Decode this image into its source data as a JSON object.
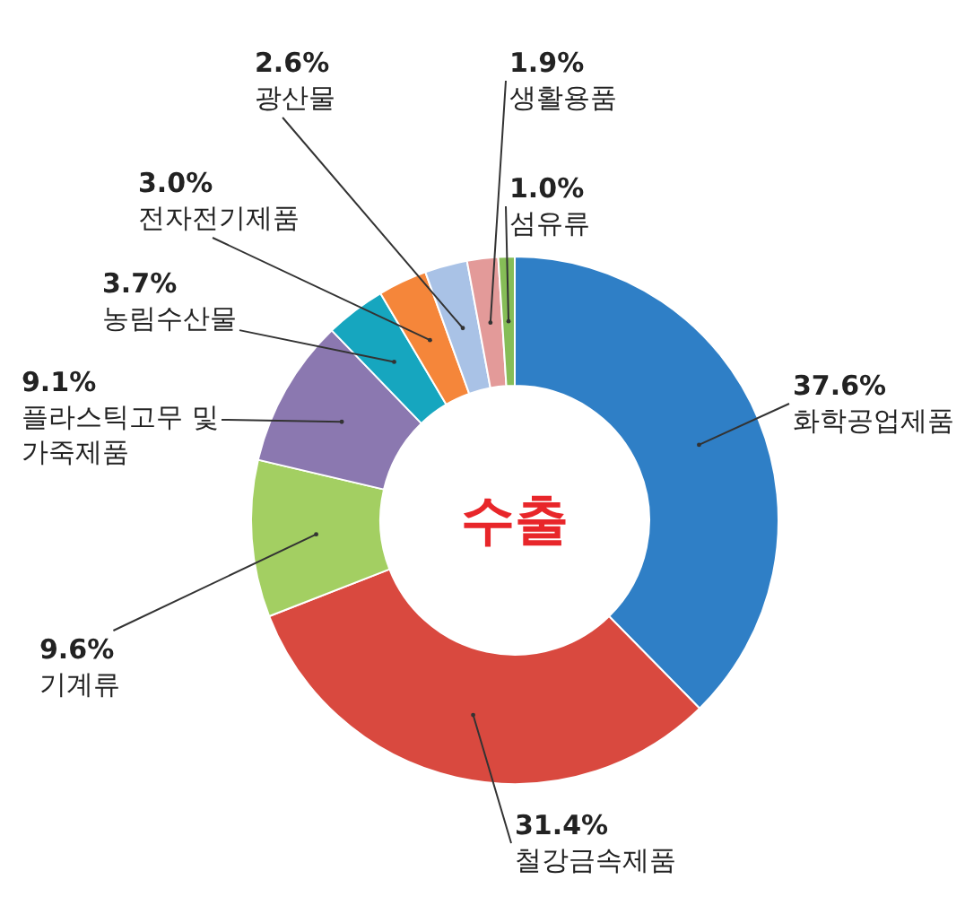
{
  "chart_data": {
    "type": "donut",
    "title": "수출",
    "categories": [
      "화학공업제품",
      "철강금속제품",
      "기계류",
      "플라스틱고무 및\n가죽제품",
      "농림수산물",
      "전자전기제품",
      "광산물",
      "생활용품",
      "섬유류"
    ],
    "values": [
      37.6,
      31.4,
      9.6,
      9.1,
      3.7,
      3.0,
      2.6,
      1.9,
      1.0
    ],
    "value_labels": [
      "37.6%",
      "31.4%",
      "9.6%",
      "9.1%",
      "3.7%",
      "3.0%",
      "2.6%",
      "1.9%",
      "1.0%"
    ],
    "colors": [
      "#2f7fc6",
      "#d9493f",
      "#a3cf62",
      "#8b78b0",
      "#16a6bf",
      "#f5863a",
      "#a9c2e6",
      "#e39a99",
      "#86bd57"
    ],
    "legend": false
  }
}
